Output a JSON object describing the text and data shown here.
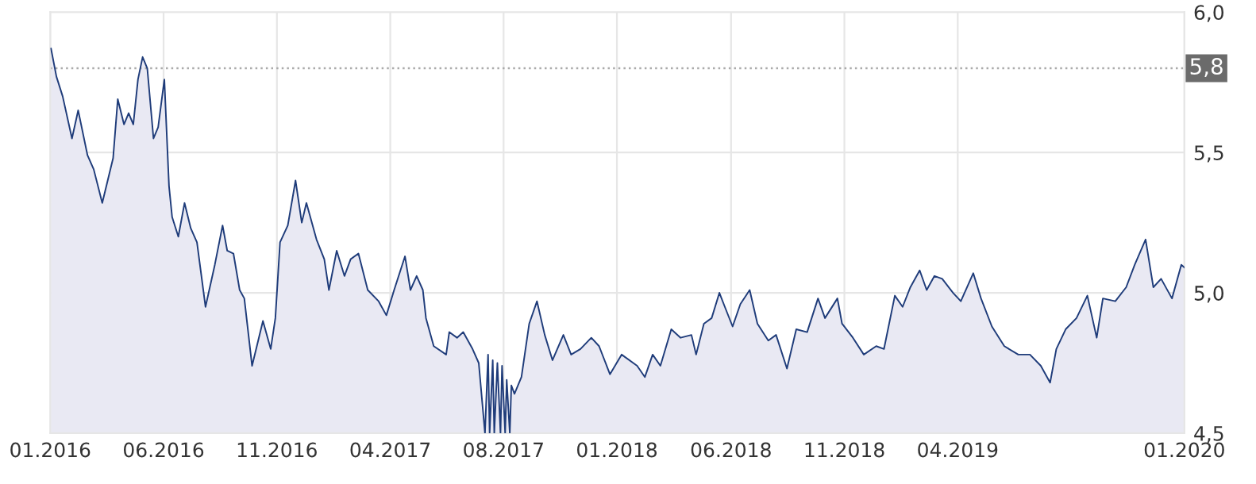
{
  "chart_data": {
    "type": "area",
    "xlim": [
      "2016-01-04",
      "2020-01-04"
    ],
    "xticks": [
      {
        "value": "2016-01-04",
        "label": "01.2016"
      },
      {
        "value": "2016-05-29",
        "label": "06.2016"
      },
      {
        "value": "2016-10-22",
        "label": "11.2016"
      },
      {
        "value": "2017-03-17",
        "label": "04.2017"
      },
      {
        "value": "2017-08-10",
        "label": "08.2017"
      },
      {
        "value": "2018-01-03",
        "label": "01.2018"
      },
      {
        "value": "2018-05-30",
        "label": "06.2018"
      },
      {
        "value": "2018-10-23",
        "label": "11.2018"
      },
      {
        "value": "2019-03-18",
        "label": "04.2019"
      },
      {
        "value": "2020-01-04",
        "label": "01.2020"
      }
    ],
    "ylim": [
      4.5,
      6.0
    ],
    "yticks": [
      {
        "value": 4.5,
        "label": "4,5"
      },
      {
        "value": 5.0,
        "label": "5,0"
      },
      {
        "value": 5.5,
        "label": "5,5"
      },
      {
        "value": 6.0,
        "label": "6,0"
      }
    ],
    "grid": true,
    "ref_lines": [
      {
        "axis": "y",
        "value": 5.8,
        "label": "5,8",
        "color": "#aaaaaa",
        "line_style": "dotted"
      }
    ],
    "series": [
      {
        "color": "#1f3c7a",
        "x": [
          "2016-01-05",
          "2016-01-12",
          "2016-01-20",
          "2016-02-01",
          "2016-02-09",
          "2016-02-21",
          "2016-02-29",
          "2016-03-11",
          "2016-03-25",
          "2016-03-31",
          "2016-04-08",
          "2016-04-14",
          "2016-04-20",
          "2016-04-26",
          "2016-05-02",
          "2016-05-08",
          "2016-05-16",
          "2016-05-22",
          "2016-05-30",
          "2016-06-05",
          "2016-06-09",
          "2016-06-17",
          "2016-06-25",
          "2016-07-03",
          "2016-07-11",
          "2016-07-22",
          "2016-08-03",
          "2016-08-13",
          "2016-08-19",
          "2016-08-27",
          "2016-09-04",
          "2016-09-10",
          "2016-09-20",
          "2016-10-04",
          "2016-10-14",
          "2016-10-20",
          "2016-10-26",
          "2016-11-05",
          "2016-11-15",
          "2016-11-23",
          "2016-11-29",
          "2016-12-12",
          "2016-12-22",
          "2016-12-28",
          "2017-01-07",
          "2017-01-17",
          "2017-01-25",
          "2017-02-04",
          "2017-02-16",
          "2017-03-02",
          "2017-03-12",
          "2017-03-22",
          "2017-04-05",
          "2017-04-12",
          "2017-04-20",
          "2017-04-28",
          "2017-05-02",
          "2017-05-12",
          "2017-05-28",
          "2017-06-01",
          "2017-06-11",
          "2017-06-19",
          "2017-07-01",
          "2017-07-09",
          "2017-07-17",
          "2017-07-21",
          "2017-07-23",
          "2017-07-27",
          "2017-07-29",
          "2017-08-02",
          "2017-08-06",
          "2017-08-08",
          "2017-08-12",
          "2017-08-14",
          "2017-08-18",
          "2017-08-20",
          "2017-08-24",
          "2017-09-02",
          "2017-09-12",
          "2017-09-22",
          "2017-10-02",
          "2017-10-12",
          "2017-10-26",
          "2017-11-05",
          "2017-11-17",
          "2017-12-01",
          "2017-12-11",
          "2017-12-25",
          "2018-01-09",
          "2018-01-29",
          "2018-02-08",
          "2018-02-18",
          "2018-02-28",
          "2018-03-14",
          "2018-03-26",
          "2018-04-09",
          "2018-04-15",
          "2018-04-25",
          "2018-05-05",
          "2018-05-15",
          "2018-05-22",
          "2018-06-01",
          "2018-06-11",
          "2018-06-23",
          "2018-07-03",
          "2018-07-17",
          "2018-07-27",
          "2018-08-10",
          "2018-08-22",
          "2018-09-05",
          "2018-09-19",
          "2018-09-28",
          "2018-10-14",
          "2018-10-20",
          "2018-11-03",
          "2018-11-17",
          "2018-12-03",
          "2018-12-13",
          "2018-12-27",
          "2019-01-06",
          "2019-01-16",
          "2019-01-28",
          "2019-02-06",
          "2019-02-16",
          "2019-02-26",
          "2019-03-12",
          "2019-03-22",
          "2019-04-07",
          "2019-04-17",
          "2019-05-01",
          "2019-05-17",
          "2019-06-04",
          "2019-06-19",
          "2019-07-03",
          "2019-07-15",
          "2019-07-23",
          "2019-08-04",
          "2019-08-18",
          "2019-09-01",
          "2019-09-13",
          "2019-09-21",
          "2019-10-07",
          "2019-10-21",
          "2019-11-01",
          "2019-11-15",
          "2019-11-25",
          "2019-12-05",
          "2019-12-19",
          "2019-12-31",
          "2020-01-04"
        ],
        "values": [
          5.87,
          5.77,
          5.7,
          5.55,
          5.65,
          5.49,
          5.44,
          5.32,
          5.48,
          5.69,
          5.6,
          5.64,
          5.6,
          5.76,
          5.84,
          5.8,
          5.55,
          5.59,
          5.76,
          5.38,
          5.27,
          5.2,
          5.32,
          5.23,
          5.18,
          4.95,
          5.1,
          5.24,
          5.15,
          5.14,
          5.01,
          4.98,
          4.74,
          4.9,
          4.8,
          4.91,
          5.18,
          5.24,
          5.4,
          5.25,
          5.32,
          5.19,
          5.12,
          5.01,
          5.15,
          5.06,
          5.12,
          5.14,
          5.01,
          4.97,
          4.92,
          5.01,
          5.13,
          5.01,
          5.06,
          5.01,
          4.91,
          4.81,
          4.78,
          4.86,
          4.84,
          4.86,
          4.8,
          4.75,
          4.5,
          4.78,
          4.5,
          4.76,
          4.5,
          4.75,
          4.5,
          4.74,
          4.5,
          4.69,
          4.5,
          4.67,
          4.64,
          4.7,
          4.89,
          4.97,
          4.85,
          4.76,
          4.85,
          4.78,
          4.8,
          4.84,
          4.81,
          4.71,
          4.78,
          4.74,
          4.7,
          4.78,
          4.74,
          4.87,
          4.84,
          4.85,
          4.78,
          4.89,
          4.91,
          5.0,
          4.95,
          4.88,
          4.96,
          5.01,
          4.89,
          4.83,
          4.85,
          4.73,
          4.87,
          4.86,
          4.98,
          4.91,
          4.98,
          4.89,
          4.84,
          4.78,
          4.81,
          4.8,
          4.99,
          4.95,
          5.02,
          5.08,
          5.01,
          5.06,
          5.05,
          5.0,
          4.97,
          5.07,
          4.98,
          4.88,
          4.81,
          4.78,
          4.78,
          4.74,
          4.68,
          4.8,
          4.87,
          4.91,
          4.99,
          4.84,
          4.98,
          4.97,
          5.02,
          5.1,
          5.19,
          5.02,
          5.05,
          4.98,
          5.1,
          5.09
        ]
      }
    ]
  }
}
